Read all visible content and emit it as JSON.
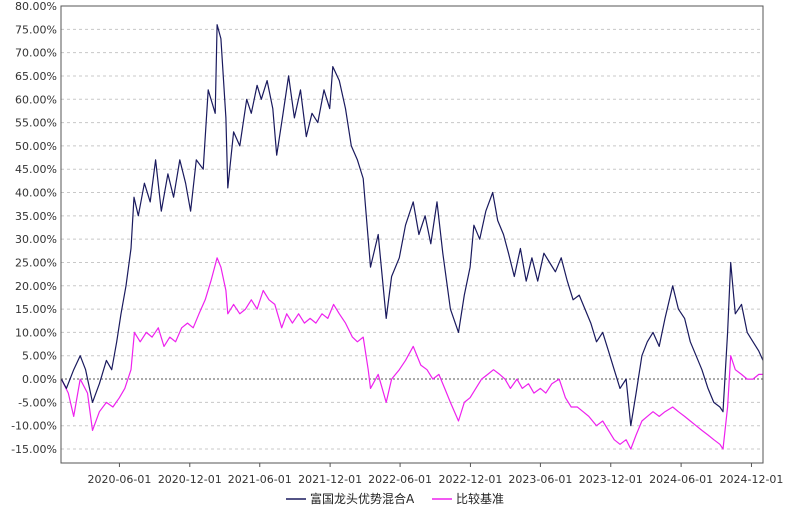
{
  "chart_data": {
    "type": "line",
    "title": "",
    "xlabel": "",
    "ylabel": "",
    "ylim": [
      -0.18,
      0.8
    ],
    "grid": true,
    "legend_position": "bottom-center",
    "y_ticks": [
      "-15.00%",
      "-10.00%",
      "-5.00%",
      "0.00%",
      "5.00%",
      "10.00%",
      "15.00%",
      "20.00%",
      "25.00%",
      "30.00%",
      "35.00%",
      "40.00%",
      "45.00%",
      "50.00%",
      "55.00%",
      "60.00%",
      "65.00%",
      "70.00%",
      "75.00%",
      "80.00%"
    ],
    "x_ticks": [
      "2020-06-01",
      "2020-12-01",
      "2021-06-01",
      "2021-12-01",
      "2022-06-01",
      "2022-12-01",
      "2023-06-01",
      "2023-12-01",
      "2024-06-01",
      "2024-12-01"
    ],
    "x_range": [
      "2020-01-01",
      "2024-12-31"
    ],
    "series": [
      {
        "name": "富国龙头优势混合A",
        "color": "#1a1a5e",
        "points": [
          [
            "2020-01-02",
            0.0
          ],
          [
            "2020-01-15",
            -0.02
          ],
          [
            "2020-02-03",
            0.02
          ],
          [
            "2020-02-20",
            0.05
          ],
          [
            "2020-03-05",
            0.02
          ],
          [
            "2020-03-23",
            -0.05
          ],
          [
            "2020-04-10",
            -0.01
          ],
          [
            "2020-04-28",
            0.04
          ],
          [
            "2020-05-12",
            0.02
          ],
          [
            "2020-05-25",
            0.08
          ],
          [
            "2020-06-05",
            0.14
          ],
          [
            "2020-06-18",
            0.2
          ],
          [
            "2020-07-01",
            0.28
          ],
          [
            "2020-07-09",
            0.39
          ],
          [
            "2020-07-20",
            0.35
          ],
          [
            "2020-08-05",
            0.42
          ],
          [
            "2020-08-20",
            0.38
          ],
          [
            "2020-09-03",
            0.47
          ],
          [
            "2020-09-18",
            0.36
          ],
          [
            "2020-10-05",
            0.44
          ],
          [
            "2020-10-20",
            0.39
          ],
          [
            "2020-11-05",
            0.47
          ],
          [
            "2020-11-20",
            0.42
          ],
          [
            "2020-12-03",
            0.36
          ],
          [
            "2020-12-18",
            0.47
          ],
          [
            "2021-01-05",
            0.45
          ],
          [
            "2021-01-18",
            0.62
          ],
          [
            "2021-02-05",
            0.57
          ],
          [
            "2021-02-10",
            0.76
          ],
          [
            "2021-02-20",
            0.73
          ],
          [
            "2021-03-05",
            0.56
          ],
          [
            "2021-03-10",
            0.41
          ],
          [
            "2021-03-25",
            0.53
          ],
          [
            "2021-04-10",
            0.5
          ],
          [
            "2021-04-28",
            0.6
          ],
          [
            "2021-05-10",
            0.57
          ],
          [
            "2021-05-25",
            0.63
          ],
          [
            "2021-06-05",
            0.6
          ],
          [
            "2021-06-20",
            0.64
          ],
          [
            "2021-07-05",
            0.58
          ],
          [
            "2021-07-15",
            0.48
          ],
          [
            "2021-07-30",
            0.56
          ],
          [
            "2021-08-15",
            0.65
          ],
          [
            "2021-08-30",
            0.56
          ],
          [
            "2021-09-15",
            0.62
          ],
          [
            "2021-09-30",
            0.52
          ],
          [
            "2021-10-15",
            0.57
          ],
          [
            "2021-10-30",
            0.55
          ],
          [
            "2021-11-15",
            0.62
          ],
          [
            "2021-11-30",
            0.58
          ],
          [
            "2021-12-08",
            0.67
          ],
          [
            "2021-12-25",
            0.64
          ],
          [
            "2022-01-10",
            0.58
          ],
          [
            "2022-01-25",
            0.5
          ],
          [
            "2022-02-10",
            0.47
          ],
          [
            "2022-02-25",
            0.43
          ],
          [
            "2022-03-10",
            0.3
          ],
          [
            "2022-03-16",
            0.24
          ],
          [
            "2022-04-05",
            0.31
          ],
          [
            "2022-04-26",
            0.13
          ],
          [
            "2022-05-10",
            0.22
          ],
          [
            "2022-05-30",
            0.26
          ],
          [
            "2022-06-15",
            0.33
          ],
          [
            "2022-07-05",
            0.38
          ],
          [
            "2022-07-20",
            0.31
          ],
          [
            "2022-08-05",
            0.35
          ],
          [
            "2022-08-20",
            0.29
          ],
          [
            "2022-09-05",
            0.38
          ],
          [
            "2022-09-20",
            0.27
          ],
          [
            "2022-10-10",
            0.15
          ],
          [
            "2022-10-31",
            0.1
          ],
          [
            "2022-11-15",
            0.18
          ],
          [
            "2022-11-30",
            0.24
          ],
          [
            "2022-12-10",
            0.33
          ],
          [
            "2022-12-25",
            0.3
          ],
          [
            "2023-01-10",
            0.36
          ],
          [
            "2023-01-28",
            0.4
          ],
          [
            "2023-02-10",
            0.34
          ],
          [
            "2023-02-25",
            0.31
          ],
          [
            "2023-03-10",
            0.27
          ],
          [
            "2023-03-25",
            0.22
          ],
          [
            "2023-04-10",
            0.28
          ],
          [
            "2023-04-25",
            0.21
          ],
          [
            "2023-05-10",
            0.26
          ],
          [
            "2023-05-25",
            0.21
          ],
          [
            "2023-06-10",
            0.27
          ],
          [
            "2023-06-25",
            0.25
          ],
          [
            "2023-07-10",
            0.23
          ],
          [
            "2023-07-25",
            0.26
          ],
          [
            "2023-08-10",
            0.21
          ],
          [
            "2023-08-25",
            0.17
          ],
          [
            "2023-09-10",
            0.18
          ],
          [
            "2023-09-25",
            0.15
          ],
          [
            "2023-10-10",
            0.12
          ],
          [
            "2023-10-25",
            0.08
          ],
          [
            "2023-11-10",
            0.1
          ],
          [
            "2023-11-25",
            0.06
          ],
          [
            "2023-12-10",
            0.02
          ],
          [
            "2023-12-25",
            -0.02
          ],
          [
            "2024-01-10",
            0.0
          ],
          [
            "2024-01-22",
            -0.1
          ],
          [
            "2024-02-05",
            -0.03
          ],
          [
            "2024-02-20",
            0.05
          ],
          [
            "2024-03-05",
            0.08
          ],
          [
            "2024-03-20",
            0.1
          ],
          [
            "2024-04-05",
            0.07
          ],
          [
            "2024-04-20",
            0.13
          ],
          [
            "2024-05-10",
            0.2
          ],
          [
            "2024-05-25",
            0.15
          ],
          [
            "2024-06-10",
            0.13
          ],
          [
            "2024-06-25",
            0.08
          ],
          [
            "2024-07-10",
            0.05
          ],
          [
            "2024-07-25",
            0.02
          ],
          [
            "2024-08-10",
            -0.02
          ],
          [
            "2024-08-25",
            -0.05
          ],
          [
            "2024-09-10",
            -0.06
          ],
          [
            "2024-09-18",
            -0.07
          ],
          [
            "2024-09-30",
            0.1
          ],
          [
            "2024-10-08",
            0.25
          ],
          [
            "2024-10-20",
            0.14
          ],
          [
            "2024-11-05",
            0.16
          ],
          [
            "2024-11-20",
            0.1
          ],
          [
            "2024-12-05",
            0.08
          ],
          [
            "2024-12-20",
            0.06
          ],
          [
            "2024-12-31",
            0.04
          ]
        ]
      },
      {
        "name": "比较基准",
        "color": "#ee22ee",
        "points": [
          [
            "2020-01-02",
            0.0
          ],
          [
            "2020-01-20",
            -0.03
          ],
          [
            "2020-02-03",
            -0.08
          ],
          [
            "2020-02-20",
            0.0
          ],
          [
            "2020-03-10",
            -0.03
          ],
          [
            "2020-03-23",
            -0.11
          ],
          [
            "2020-04-10",
            -0.07
          ],
          [
            "2020-04-28",
            -0.05
          ],
          [
            "2020-05-15",
            -0.06
          ],
          [
            "2020-06-01",
            -0.04
          ],
          [
            "2020-06-15",
            -0.02
          ],
          [
            "2020-07-01",
            0.02
          ],
          [
            "2020-07-10",
            0.1
          ],
          [
            "2020-07-25",
            0.08
          ],
          [
            "2020-08-10",
            0.1
          ],
          [
            "2020-08-25",
            0.09
          ],
          [
            "2020-09-10",
            0.11
          ],
          [
            "2020-09-25",
            0.07
          ],
          [
            "2020-10-10",
            0.09
          ],
          [
            "2020-10-25",
            0.08
          ],
          [
            "2020-11-10",
            0.11
          ],
          [
            "2020-11-25",
            0.12
          ],
          [
            "2020-12-10",
            0.11
          ],
          [
            "2020-12-25",
            0.14
          ],
          [
            "2021-01-10",
            0.17
          ],
          [
            "2021-01-25",
            0.21
          ],
          [
            "2021-02-10",
            0.26
          ],
          [
            "2021-02-20",
            0.24
          ],
          [
            "2021-03-05",
            0.19
          ],
          [
            "2021-03-10",
            0.14
          ],
          [
            "2021-03-25",
            0.16
          ],
          [
            "2021-04-10",
            0.14
          ],
          [
            "2021-04-25",
            0.15
          ],
          [
            "2021-05-10",
            0.17
          ],
          [
            "2021-05-25",
            0.15
          ],
          [
            "2021-06-10",
            0.19
          ],
          [
            "2021-06-25",
            0.17
          ],
          [
            "2021-07-10",
            0.16
          ],
          [
            "2021-07-28",
            0.11
          ],
          [
            "2021-08-10",
            0.14
          ],
          [
            "2021-08-25",
            0.12
          ],
          [
            "2021-09-10",
            0.14
          ],
          [
            "2021-09-25",
            0.12
          ],
          [
            "2021-10-10",
            0.13
          ],
          [
            "2021-10-25",
            0.12
          ],
          [
            "2021-11-10",
            0.14
          ],
          [
            "2021-11-25",
            0.13
          ],
          [
            "2021-12-10",
            0.16
          ],
          [
            "2021-12-25",
            0.14
          ],
          [
            "2022-01-10",
            0.12
          ],
          [
            "2022-01-28",
            0.09
          ],
          [
            "2022-02-10",
            0.08
          ],
          [
            "2022-02-25",
            0.09
          ],
          [
            "2022-03-10",
            0.02
          ],
          [
            "2022-03-16",
            -0.02
          ],
          [
            "2022-04-05",
            0.01
          ],
          [
            "2022-04-26",
            -0.05
          ],
          [
            "2022-05-10",
            0.0
          ],
          [
            "2022-05-30",
            0.02
          ],
          [
            "2022-06-15",
            0.04
          ],
          [
            "2022-07-05",
            0.07
          ],
          [
            "2022-07-25",
            0.03
          ],
          [
            "2022-08-10",
            0.02
          ],
          [
            "2022-08-25",
            0.0
          ],
          [
            "2022-09-10",
            0.01
          ],
          [
            "2022-09-25",
            -0.02
          ],
          [
            "2022-10-10",
            -0.05
          ],
          [
            "2022-10-31",
            -0.09
          ],
          [
            "2022-11-15",
            -0.05
          ],
          [
            "2022-11-30",
            -0.04
          ],
          [
            "2022-12-15",
            -0.02
          ],
          [
            "2022-12-30",
            0.0
          ],
          [
            "2023-01-15",
            0.01
          ],
          [
            "2023-01-30",
            0.02
          ],
          [
            "2023-02-15",
            0.01
          ],
          [
            "2023-03-01",
            0.0
          ],
          [
            "2023-03-15",
            -0.02
          ],
          [
            "2023-04-01",
            0.0
          ],
          [
            "2023-04-15",
            -0.02
          ],
          [
            "2023-05-01",
            -0.01
          ],
          [
            "2023-05-15",
            -0.03
          ],
          [
            "2023-06-01",
            -0.02
          ],
          [
            "2023-06-15",
            -0.03
          ],
          [
            "2023-07-01",
            -0.01
          ],
          [
            "2023-07-20",
            0.0
          ],
          [
            "2023-08-05",
            -0.04
          ],
          [
            "2023-08-20",
            -0.06
          ],
          [
            "2023-09-05",
            -0.06
          ],
          [
            "2023-09-20",
            -0.07
          ],
          [
            "2023-10-05",
            -0.08
          ],
          [
            "2023-10-25",
            -0.1
          ],
          [
            "2023-11-10",
            -0.09
          ],
          [
            "2023-11-25",
            -0.11
          ],
          [
            "2023-12-10",
            -0.13
          ],
          [
            "2023-12-25",
            -0.14
          ],
          [
            "2024-01-10",
            -0.13
          ],
          [
            "2024-01-22",
            -0.15
          ],
          [
            "2024-02-05",
            -0.12
          ],
          [
            "2024-02-20",
            -0.09
          ],
          [
            "2024-03-05",
            -0.08
          ],
          [
            "2024-03-20",
            -0.07
          ],
          [
            "2024-04-05",
            -0.08
          ],
          [
            "2024-04-20",
            -0.07
          ],
          [
            "2024-05-10",
            -0.06
          ],
          [
            "2024-05-25",
            -0.07
          ],
          [
            "2024-06-10",
            -0.08
          ],
          [
            "2024-06-25",
            -0.09
          ],
          [
            "2024-07-10",
            -0.1
          ],
          [
            "2024-07-25",
            -0.11
          ],
          [
            "2024-08-10",
            -0.12
          ],
          [
            "2024-08-25",
            -0.13
          ],
          [
            "2024-09-10",
            -0.14
          ],
          [
            "2024-09-18",
            -0.15
          ],
          [
            "2024-09-30",
            -0.06
          ],
          [
            "2024-10-08",
            0.05
          ],
          [
            "2024-10-20",
            0.02
          ],
          [
            "2024-11-05",
            0.01
          ],
          [
            "2024-11-20",
            0.0
          ],
          [
            "2024-12-05",
            0.0
          ],
          [
            "2024-12-20",
            0.01
          ],
          [
            "2024-12-31",
            0.01
          ]
        ]
      }
    ]
  }
}
